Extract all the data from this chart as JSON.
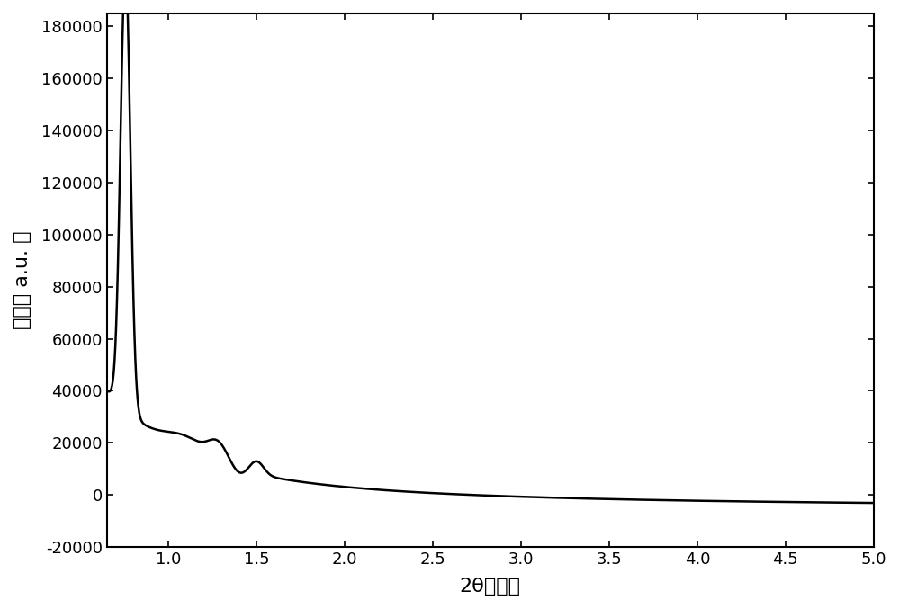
{
  "xlabel": "2θ（度）",
  "ylabel": "强度（ a.u. ）",
  "xlim": [
    0.65,
    5.0
  ],
  "ylim": [
    -20000,
    185000
  ],
  "yticks": [
    -20000,
    0,
    20000,
    40000,
    60000,
    80000,
    100000,
    120000,
    140000,
    160000,
    180000
  ],
  "xticks": [
    1.0,
    1.5,
    2.0,
    2.5,
    3.0,
    3.5,
    4.0,
    4.5,
    5.0
  ],
  "line_color": "#000000",
  "background_color": "#ffffff",
  "line_width": 1.8
}
